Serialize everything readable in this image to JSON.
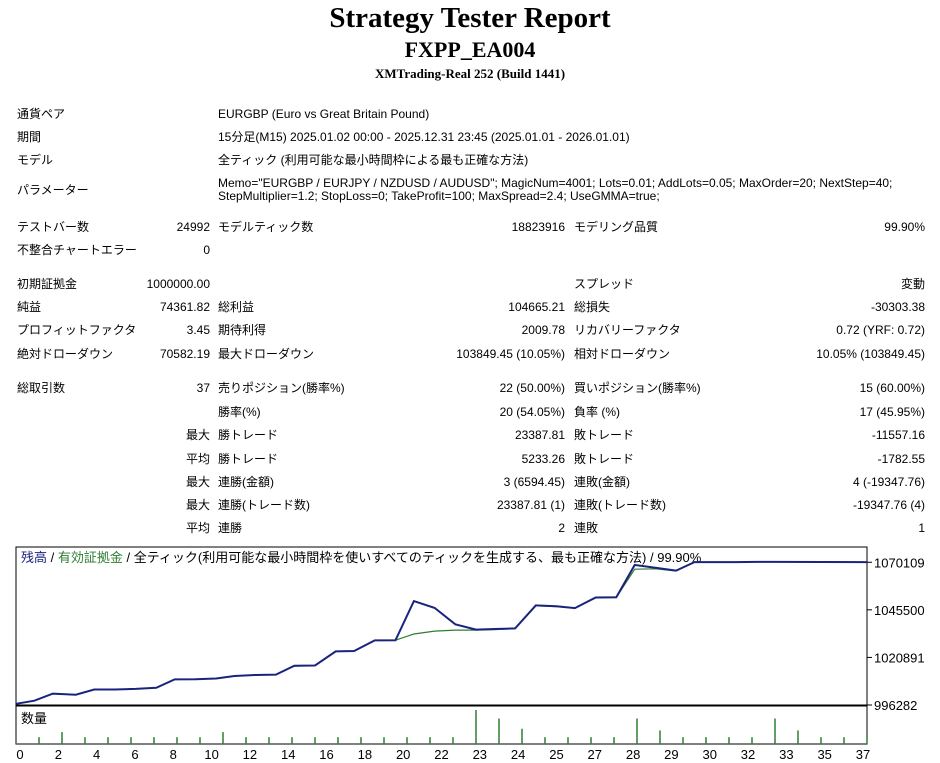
{
  "header": {
    "title": "Strategy Tester Report",
    "ea_name": "FXPP_EA004",
    "server": "XMTrading-Real 252 (Build 1441)"
  },
  "info": {
    "pair_label": "通貨ペア",
    "pair_value": "EURGBP (Euro vs Great Britain Pound)",
    "period_label": "期間",
    "period_value": "15分足(M15) 2025.01.02 00:00 - 2025.12.31 23:45 (2025.01.01 - 2026.01.01)",
    "model_label": "モデル",
    "model_value": "全ティック (利用可能な最小時間枠による最も正確な方法)",
    "param_label": "パラメーター",
    "param_value": "Memo=\"EURGBP / EURJPY / NZDUSD / AUDUSD\"; MagicNum=4001; Lots=0.01; AddLots=0.05; MaxOrder=20; NextStep=40; StepMultiplier=1.2; StopLoss=0; TakeProfit=100; MaxSpread=2.4; UseGMMA=true;"
  },
  "stats": {
    "bars_label": "テストバー数",
    "bars_value": "24992",
    "ticks_label": "モデルティック数",
    "ticks_value": "18823916",
    "quality_label": "モデリング品質",
    "quality_value": "99.90%",
    "mismatch_label": "不整合チャートエラー",
    "mismatch_value": "0",
    "deposit_label": "初期証拠金",
    "deposit_value": "1000000.00",
    "spread_label": "スプレッド",
    "spread_value": "変動",
    "net_label": "純益",
    "net_value": "74361.82",
    "gross_profit_label": "総利益",
    "gross_profit_value": "104665.21",
    "gross_loss_label": "総損失",
    "gross_loss_value": "-30303.38",
    "pf_label": "プロフィットファクタ",
    "pf_value": "3.45",
    "expected_label": "期待利得",
    "expected_value": "2009.78",
    "recovery_label": "リカバリーファクタ",
    "recovery_value": "0.72 (YRF: 0.72)",
    "abs_dd_label": "絶対ドローダウン",
    "abs_dd_value": "70582.19",
    "max_dd_label": "最大ドローダウン",
    "max_dd_value": "103849.45 (10.05%)",
    "rel_dd_label": "相対ドローダウン",
    "rel_dd_value": "10.05% (103849.45)",
    "trades_label": "総取引数",
    "trades_value": "37",
    "short_label": "売りポジション(勝率%)",
    "short_value": "22 (50.00%)",
    "long_label": "買いポジション(勝率%)",
    "long_value": "15 (60.00%)",
    "win_rate_label": "勝率(%)",
    "win_rate_value": "20 (54.05%)",
    "loss_rate_label": "負率 (%)",
    "loss_rate_value": "17 (45.95%)",
    "max_prefix": "最大",
    "avg_prefix": "平均",
    "max_win_label": "勝トレード",
    "max_win_value": "23387.81",
    "max_loss_label": "敗トレード",
    "max_loss_value": "-11557.16",
    "avg_win_label": "勝トレード",
    "avg_win_value": "5233.26",
    "avg_loss_label": "敗トレード",
    "avg_loss_value": "-1782.55",
    "cons_win_amt_label": "連勝(金額)",
    "cons_win_amt_value": "3 (6594.45)",
    "cons_loss_amt_label": "連敗(金額)",
    "cons_loss_amt_value": "4 (-19347.76)",
    "cons_win_cnt_label": "連勝(トレード数)",
    "cons_win_cnt_value": "23387.81 (1)",
    "cons_loss_cnt_label": "連敗(トレード数)",
    "cons_loss_cnt_value": "-19347.76 (4)",
    "avg_cons_win_label": "連勝",
    "avg_cons_win_value": "2",
    "avg_cons_loss_label": "連敗",
    "avg_cons_loss_value": "1"
  },
  "chart_data": {
    "type": "line",
    "legend_balance": "残高",
    "legend_equity": "有効証拠金",
    "legend_sep": " / ",
    "legend_rest": " / 全ティック(利用可能な最小時間枠を使いすべてのティックを生成する、最も正確な方法) / 99.90%",
    "volume_label": "数量",
    "colors": {
      "balance": "#1a237e",
      "equity": "#2e7d32",
      "volume": "#2e7d32"
    },
    "ylim": [
      996282,
      1078000
    ],
    "y_ticks": [
      "1070109",
      "1045500",
      "1020891",
      "996282"
    ],
    "y_tick_values": [
      1070109,
      1045500,
      1020891,
      996282
    ],
    "xlim": [
      0,
      37
    ],
    "x_ticks": [
      "0",
      "2",
      "4",
      "6",
      "8",
      "10",
      "12",
      "14",
      "16",
      "18",
      "20",
      "22",
      "23",
      "24",
      "25",
      "27",
      "28",
      "29",
      "30",
      "32",
      "33",
      "35",
      "37"
    ],
    "balance": [
      [
        0,
        996900
      ],
      [
        0.8,
        998500
      ],
      [
        1.6,
        1002200
      ],
      [
        2.6,
        1001600
      ],
      [
        3.4,
        1004300
      ],
      [
        4.3,
        1004300
      ],
      [
        5.2,
        1004600
      ],
      [
        6.1,
        1005200
      ],
      [
        6.9,
        1009500
      ],
      [
        7.8,
        1009600
      ],
      [
        8.7,
        1010000
      ],
      [
        9.5,
        1011300
      ],
      [
        10.4,
        1011800
      ],
      [
        11.3,
        1012000
      ],
      [
        12.1,
        1016600
      ],
      [
        13,
        1016700
      ],
      [
        13.9,
        1024000
      ],
      [
        14.7,
        1024200
      ],
      [
        15.6,
        1029700
      ],
      [
        16.5,
        1029800
      ],
      [
        17.3,
        1050000
      ],
      [
        18.2,
        1046500
      ],
      [
        19.1,
        1038000
      ],
      [
        20,
        1035300
      ],
      [
        20.8,
        1035600
      ],
      [
        21.7,
        1035900
      ],
      [
        22.6,
        1047800
      ],
      [
        23.5,
        1047400
      ],
      [
        24.3,
        1046400
      ],
      [
        25.2,
        1051900
      ],
      [
        26.1,
        1052000
      ],
      [
        26.9,
        1068700
      ],
      [
        27.8,
        1067300
      ],
      [
        28.7,
        1065800
      ],
      [
        29.5,
        1070200
      ],
      [
        30.4,
        1070200
      ],
      [
        31.3,
        1070200
      ],
      [
        32.2,
        1070300
      ],
      [
        33.0,
        1070300
      ],
      [
        37,
        1070200
      ]
    ],
    "equity": [
      [
        0,
        996900
      ],
      [
        0.8,
        998500
      ],
      [
        1.6,
        1002000
      ],
      [
        2.6,
        1001600
      ],
      [
        3.4,
        1004300
      ],
      [
        4.3,
        1004300
      ],
      [
        5.2,
        1004600
      ],
      [
        6.1,
        1005200
      ],
      [
        6.9,
        1009500
      ],
      [
        7.8,
        1009600
      ],
      [
        8.7,
        1010000
      ],
      [
        9.5,
        1011300
      ],
      [
        10.4,
        1011800
      ],
      [
        11.3,
        1012000
      ],
      [
        12.1,
        1016400
      ],
      [
        13,
        1016700
      ],
      [
        13.9,
        1024000
      ],
      [
        14.7,
        1024200
      ],
      [
        15.6,
        1029700
      ],
      [
        16.5,
        1029800
      ],
      [
        17.3,
        1033000
      ],
      [
        18.2,
        1034500
      ],
      [
        19.1,
        1035000
      ],
      [
        20,
        1035000
      ],
      [
        20.8,
        1035300
      ],
      [
        21.7,
        1035800
      ],
      [
        22.6,
        1047600
      ],
      [
        23.5,
        1047200
      ],
      [
        24.3,
        1046400
      ],
      [
        25.2,
        1051700
      ],
      [
        26.1,
        1051900
      ],
      [
        26.9,
        1066500
      ],
      [
        27.8,
        1066700
      ],
      [
        28.7,
        1065600
      ],
      [
        29.5,
        1070200
      ],
      [
        30.4,
        1070200
      ],
      [
        31.3,
        1070200
      ],
      [
        32.2,
        1070300
      ],
      [
        33.0,
        1070300
      ],
      [
        37,
        1070200
      ]
    ],
    "volume": [
      [
        0,
        0.05
      ],
      [
        1,
        0.2
      ],
      [
        2,
        0.35
      ],
      [
        3,
        0.2
      ],
      [
        4,
        0.2
      ],
      [
        5,
        0.2
      ],
      [
        6,
        0.2
      ],
      [
        7,
        0.2
      ],
      [
        8,
        0.2
      ],
      [
        9,
        0.35
      ],
      [
        10,
        0.2
      ],
      [
        11,
        0.2
      ],
      [
        12,
        0.2
      ],
      [
        13,
        0.2
      ],
      [
        14,
        0.2
      ],
      [
        15,
        0.2
      ],
      [
        16,
        0.2
      ],
      [
        17,
        0.2
      ],
      [
        18,
        0.2
      ],
      [
        19,
        0.2
      ],
      [
        20,
        1.0
      ],
      [
        21,
        0.75
      ],
      [
        22,
        0.45
      ],
      [
        23,
        0.2
      ],
      [
        24,
        0.2
      ],
      [
        25,
        0.2
      ],
      [
        26,
        0.2
      ],
      [
        27,
        0.75
      ],
      [
        28,
        0.4
      ],
      [
        29,
        0.2
      ],
      [
        30,
        0.2
      ],
      [
        31,
        0.2
      ],
      [
        32,
        0.2
      ],
      [
        33,
        0.75
      ],
      [
        34,
        0.4
      ],
      [
        35,
        0.2
      ],
      [
        36,
        0.2
      ],
      [
        37,
        0.2
      ]
    ]
  }
}
